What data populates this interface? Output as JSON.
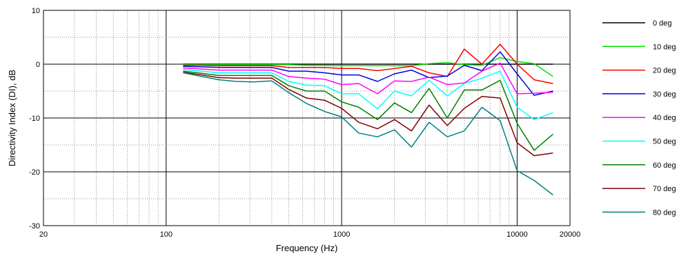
{
  "chart_data": {
    "type": "line",
    "xlabel": "Frequency (Hz)",
    "ylabel": "Directivity Index (DI), dB",
    "x_scale": "log",
    "xlim": [
      20,
      20000
    ],
    "ylim": [
      -30,
      10
    ],
    "grid": true,
    "legend_position": "right",
    "x_ticks": [
      {
        "value": 20,
        "label": "20"
      },
      {
        "value": 100,
        "label": "100"
      },
      {
        "value": 1000,
        "label": "1000"
      },
      {
        "value": 10000,
        "label": "10000"
      },
      {
        "value": 20000,
        "label": "20000"
      }
    ],
    "y_ticks": [
      {
        "value": 10,
        "label": "10"
      },
      {
        "value": 0,
        "label": "0"
      },
      {
        "value": -10,
        "label": "-10"
      },
      {
        "value": -20,
        "label": "-20"
      },
      {
        "value": -30,
        "label": "-30"
      }
    ],
    "x": [
      125,
      160,
      200,
      250,
      315,
      400,
      500,
      630,
      800,
      1000,
      1250,
      1600,
      2000,
      2500,
      3150,
      4000,
      5000,
      6300,
      8000,
      10000,
      12500,
      16000
    ],
    "series": [
      {
        "name": "0 deg",
        "color": "#000000",
        "values": [
          0,
          0,
          0,
          0,
          0,
          0,
          0,
          0,
          0,
          0,
          0,
          0,
          0,
          0,
          0,
          0,
          0,
          0,
          0,
          0,
          0,
          0
        ]
      },
      {
        "name": "10 deg",
        "color": "#00e000",
        "values": [
          -0.1,
          -0.1,
          -0.1,
          -0.1,
          -0.1,
          -0.1,
          -0.1,
          -0.2,
          -0.2,
          -0.3,
          -0.3,
          -0.3,
          -0.3,
          -0.3,
          0.1,
          0.3,
          -0.1,
          -0.2,
          1.2,
          0.5,
          0.1,
          -2.3
        ]
      },
      {
        "name": "20 deg",
        "color": "#ff0000",
        "values": [
          -0.2,
          -0.2,
          -0.3,
          -0.3,
          -0.3,
          -0.3,
          -0.6,
          -0.6,
          -0.6,
          -0.8,
          -0.8,
          -1.2,
          -0.8,
          -0.4,
          -1.6,
          -2.3,
          2.8,
          0,
          3.7,
          0,
          -2.9,
          -3.6
        ]
      },
      {
        "name": "30 deg",
        "color": "#0000e0",
        "values": [
          -0.4,
          -0.5,
          -0.6,
          -0.6,
          -0.6,
          -0.6,
          -1.3,
          -1.3,
          -1.6,
          -2,
          -2,
          -3.2,
          -1.8,
          -1.1,
          -2.5,
          -2.2,
          -0.2,
          -1.2,
          2.3,
          -1.8,
          -5.8,
          -5
        ]
      },
      {
        "name": "40 deg",
        "color": "#ff00ff",
        "values": [
          -0.7,
          -0.9,
          -1.1,
          -1.1,
          -1.1,
          -1.1,
          -2.3,
          -2.6,
          -2.8,
          -3.8,
          -3.6,
          -5.5,
          -3.1,
          -3.2,
          -2.4,
          -3.8,
          -3.5,
          -1.3,
          0.2,
          -5.5,
          -5.4,
          -5.2
        ]
      },
      {
        "name": "50 deg",
        "color": "#00ffff",
        "values": [
          -1,
          -1.3,
          -1.6,
          -1.6,
          -1.6,
          -1.6,
          -3.2,
          -3.9,
          -4,
          -5.5,
          -5.5,
          -8.3,
          -5,
          -5.9,
          -3,
          -5.9,
          -3.6,
          -2.6,
          -1.3,
          -8,
          -10.3,
          -9
        ]
      },
      {
        "name": "60 deg",
        "color": "#008000",
        "values": [
          -1.3,
          -1.7,
          -2.1,
          -2.1,
          -2.1,
          -2.1,
          -4,
          -5,
          -5,
          -7,
          -8,
          -10.3,
          -7.2,
          -9,
          -4.5,
          -10,
          -4.8,
          -4.8,
          -3,
          -11,
          -16,
          -13
        ]
      },
      {
        "name": "70 deg",
        "color": "#800000",
        "values": [
          -1.5,
          -2,
          -2.5,
          -2.6,
          -2.6,
          -2.6,
          -4.7,
          -6.3,
          -6.7,
          -8.2,
          -10.8,
          -12,
          -10.3,
          -12.4,
          -7.6,
          -11.4,
          -8.2,
          -6,
          -6.3,
          -14.6,
          -17,
          -16.5
        ]
      },
      {
        "name": "80 deg",
        "color": "#008080",
        "values": [
          -1.6,
          -2.3,
          -2.9,
          -3.2,
          -3.3,
          -3.1,
          -5.3,
          -7.3,
          -8.8,
          -9.8,
          -12.8,
          -13.5,
          -12.2,
          -15.4,
          -10.8,
          -13.5,
          -12.4,
          -8,
          -10.5,
          -19.8,
          -21.6,
          -24.3
        ]
      }
    ]
  }
}
